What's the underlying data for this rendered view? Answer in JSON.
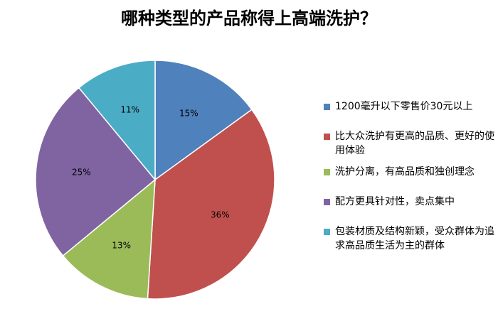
{
  "chart_data": {
    "type": "pie",
    "title": "哪种类型的产品称得上高端洗护？",
    "categories": [
      "1200毫升以下零售价30元以上",
      "比大众洗护有更高的品质、更好的使用体验",
      "洗护分离，有高品质和独创理念",
      "配方更具针对性，卖点集中",
      "包装材质及结构新颖，受众群体为追求高品质生活为主的群体"
    ],
    "values": [
      15,
      36,
      13,
      25,
      11
    ],
    "value_labels": [
      "15%",
      "36%",
      "13%",
      "25%",
      "11%"
    ],
    "colors": [
      "#4f81bd",
      "#c0504d",
      "#9bbb59",
      "#8064a2",
      "#4bacc6"
    ],
    "legend": "right"
  }
}
